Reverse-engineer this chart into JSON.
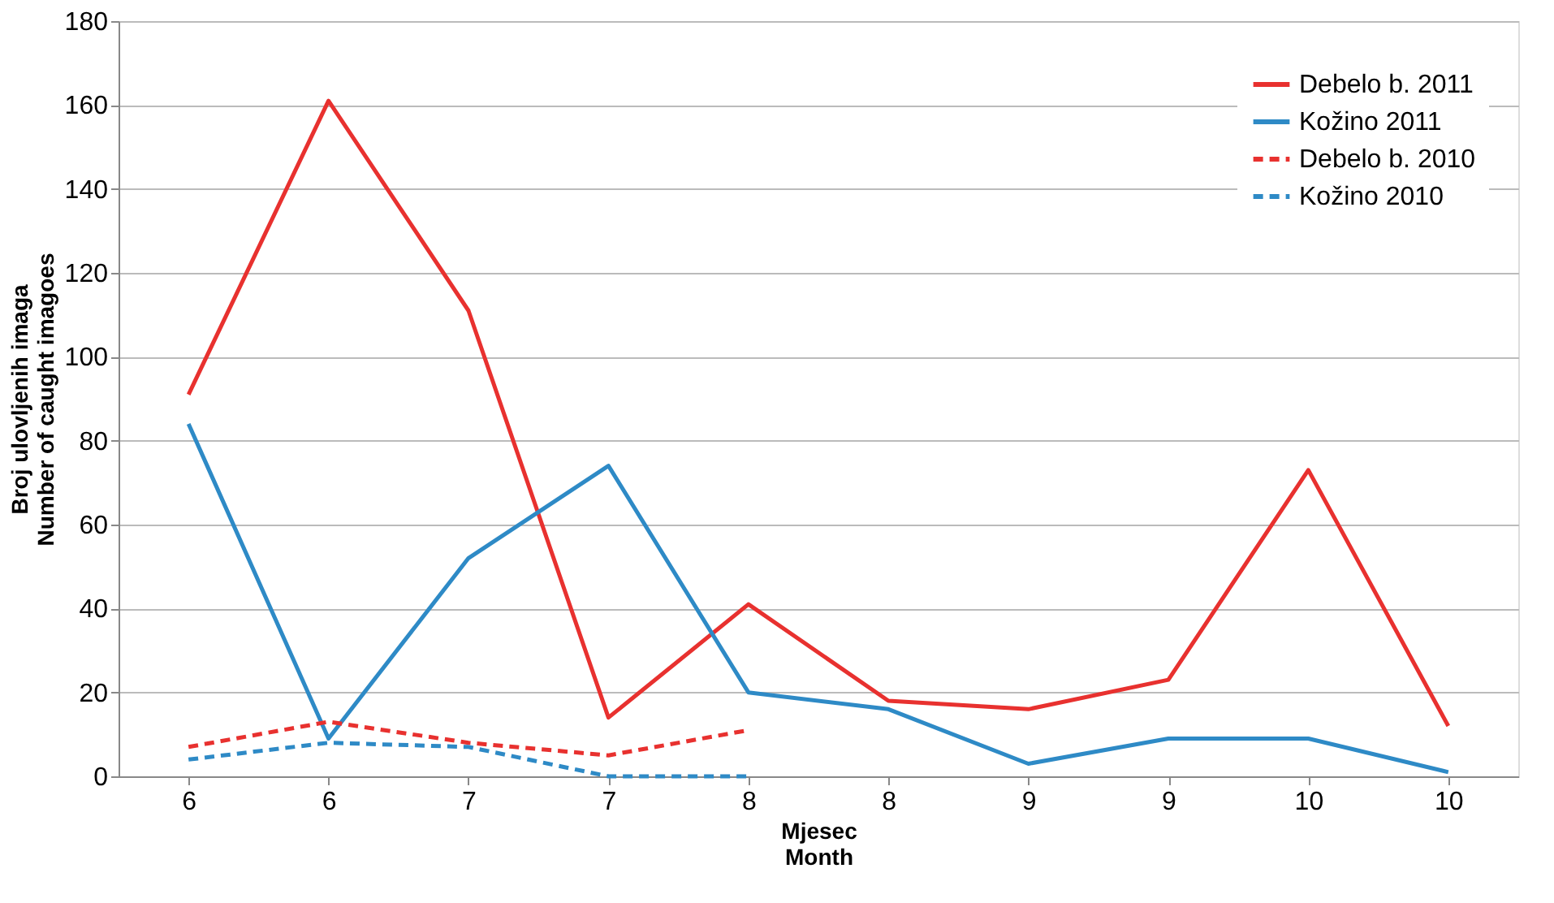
{
  "chart_data": {
    "type": "line",
    "xlabel": "Mjesec\nMonth",
    "ylabel": "Broj ulovljenih imaga\nNumber of caught imagoes",
    "categories": [
      "6",
      "6",
      "7",
      "7",
      "8",
      "8",
      "9",
      "9",
      "10",
      "10"
    ],
    "ylim": [
      0,
      180
    ],
    "yticks": [
      0,
      20,
      40,
      60,
      80,
      100,
      120,
      140,
      160,
      180
    ],
    "grid": "y",
    "legend": "top right",
    "marker": "none",
    "series": [
      {
        "name": "Debelo b. 2011",
        "color": "#e8312f",
        "line_style": "solid",
        "values": [
          91,
          161,
          111,
          14,
          41,
          18,
          16,
          23,
          73,
          12
        ]
      },
      {
        "name": "Kožino 2011",
        "color": "#2e8ac6",
        "line_style": "solid",
        "values": [
          84,
          9,
          52,
          74,
          20,
          16,
          3,
          9,
          9,
          1
        ]
      },
      {
        "name": "Debelo b. 2010",
        "color": "#e8312f",
        "line_style": "dashed",
        "values": [
          7,
          13,
          8,
          5,
          11,
          null,
          null,
          null,
          null,
          null
        ]
      },
      {
        "name": "Kožino 2010",
        "color": "#2e8ac6",
        "line_style": "dashed",
        "values": [
          4,
          8,
          7,
          0,
          0,
          null,
          null,
          null,
          null,
          null
        ]
      }
    ]
  }
}
